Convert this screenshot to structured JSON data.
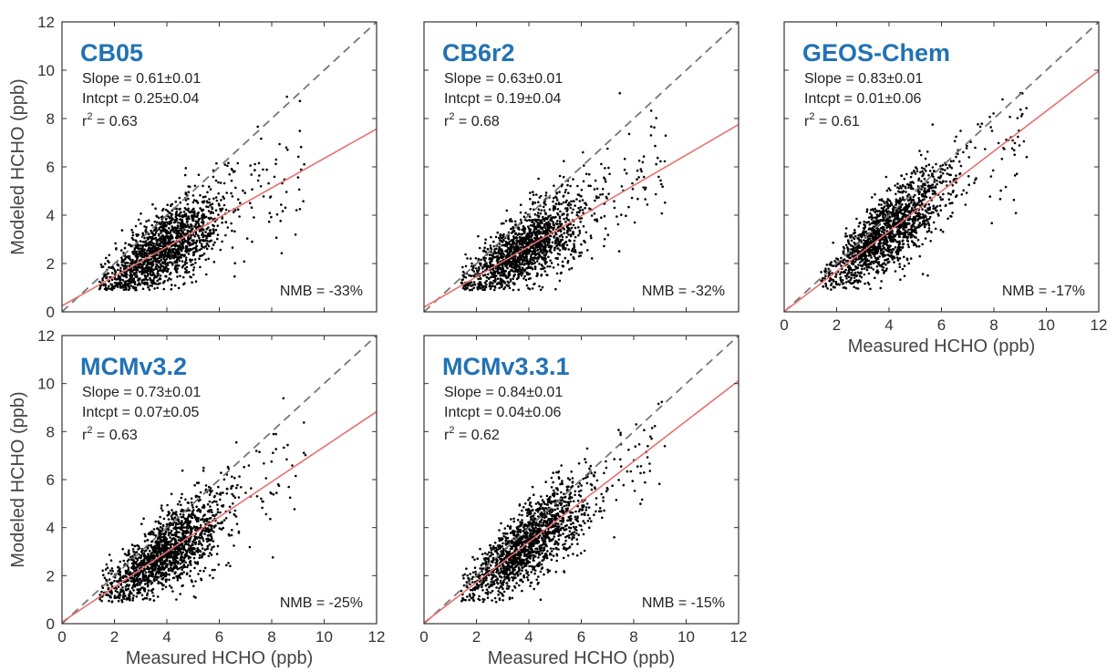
{
  "chart_data": [
    {
      "type": "scatter",
      "title": "CB05",
      "xlabel": "",
      "ylabel": "Modeled HCHO (ppb)",
      "xlim": [
        0,
        12
      ],
      "ylim": [
        0,
        12
      ],
      "xticks": [],
      "yticks": [
        "0",
        "2",
        "4",
        "6",
        "8",
        "10",
        "12"
      ],
      "grid": false,
      "stats": {
        "slope": "Slope = 0.61±0.01",
        "intercept": "Intcpt = 0.25±0.04",
        "r2_prefix": "r",
        "r2_value": " = 0.63",
        "nmb": "NMB = -33%"
      },
      "fit": {
        "slope": 0.61,
        "intercept": 0.25
      },
      "points_summary": {
        "n": 1600,
        "x_center": 3.9,
        "x_spread": 1.1,
        "x_min": 1.4,
        "x_max": 9.3,
        "y_min": 0.9
      }
    },
    {
      "type": "scatter",
      "title": "CB6r2",
      "xlabel": "",
      "ylabel": "",
      "xlim": [
        0,
        12
      ],
      "ylim": [
        0,
        12
      ],
      "xticks": [],
      "yticks": [],
      "grid": false,
      "stats": {
        "slope": "Slope = 0.63±0.01",
        "intercept": "Intcpt = 0.19±0.04",
        "r2_prefix": "r",
        "r2_value": " = 0.68",
        "nmb": "NMB = -32%"
      },
      "fit": {
        "slope": 0.63,
        "intercept": 0.19
      },
      "points_summary": {
        "n": 1600,
        "x_center": 3.9,
        "x_spread": 1.1,
        "x_min": 1.4,
        "x_max": 9.3,
        "y_min": 0.9
      }
    },
    {
      "type": "scatter",
      "title": "GEOS-Chem",
      "xlabel": "Measured HCHO (ppb)",
      "ylabel": "",
      "xlim": [
        0,
        12
      ],
      "ylim": [
        0,
        12
      ],
      "xticks": [
        "0",
        "2",
        "4",
        "6",
        "8",
        "10",
        "12"
      ],
      "yticks": [],
      "grid": false,
      "stats": {
        "slope": "Slope = 0.83±0.01",
        "intercept": "Intcpt = 0.01±0.06",
        "r2_prefix": "r",
        "r2_value": " = 0.61",
        "nmb": "NMB = -17%"
      },
      "fit": {
        "slope": 0.83,
        "intercept": 0.01
      },
      "points_summary": {
        "n": 1600,
        "x_center": 3.9,
        "x_spread": 1.1,
        "x_min": 1.4,
        "x_max": 9.3,
        "y_min": 0.9
      }
    },
    {
      "type": "scatter",
      "title": "MCMv3.2",
      "xlabel": "Measured HCHO (ppb)",
      "ylabel": "Modeled HCHO (ppb)",
      "xlim": [
        0,
        12
      ],
      "ylim": [
        0,
        12
      ],
      "xticks": [
        "0",
        "2",
        "4",
        "6",
        "8",
        "10",
        "12"
      ],
      "yticks": [
        "0",
        "2",
        "4",
        "6",
        "8",
        "10",
        "12"
      ],
      "grid": false,
      "stats": {
        "slope": "Slope = 0.73±0.01",
        "intercept": "Intcpt = 0.07±0.05",
        "r2_prefix": "r",
        "r2_value": " = 0.63",
        "nmb": "NMB = -25%"
      },
      "fit": {
        "slope": 0.73,
        "intercept": 0.07
      },
      "points_summary": {
        "n": 1600,
        "x_center": 3.9,
        "x_spread": 1.1,
        "x_min": 1.4,
        "x_max": 9.3,
        "y_min": 0.9
      }
    },
    {
      "type": "scatter",
      "title": "MCMv3.3.1",
      "xlabel": "Measured HCHO (ppb)",
      "ylabel": "",
      "xlim": [
        0,
        12
      ],
      "ylim": [
        0,
        12
      ],
      "xticks": [
        "0",
        "2",
        "4",
        "6",
        "8",
        "10",
        "12"
      ],
      "yticks": [],
      "grid": false,
      "stats": {
        "slope": "Slope = 0.84±0.01",
        "intercept": "Intcpt = 0.04±0.06",
        "r2_prefix": "r",
        "r2_value": " = 0.62",
        "nmb": "NMB = -15%"
      },
      "fit": {
        "slope": 0.84,
        "intercept": 0.04
      },
      "points_summary": {
        "n": 1600,
        "x_center": 3.9,
        "x_spread": 1.1,
        "x_min": 1.4,
        "x_max": 9.3,
        "y_min": 0.9
      }
    }
  ],
  "colors": {
    "title": "#2272b4",
    "fit_line": "#e8706f",
    "one_to_one": "#777777",
    "points": "#000000",
    "frame": "#333333"
  }
}
